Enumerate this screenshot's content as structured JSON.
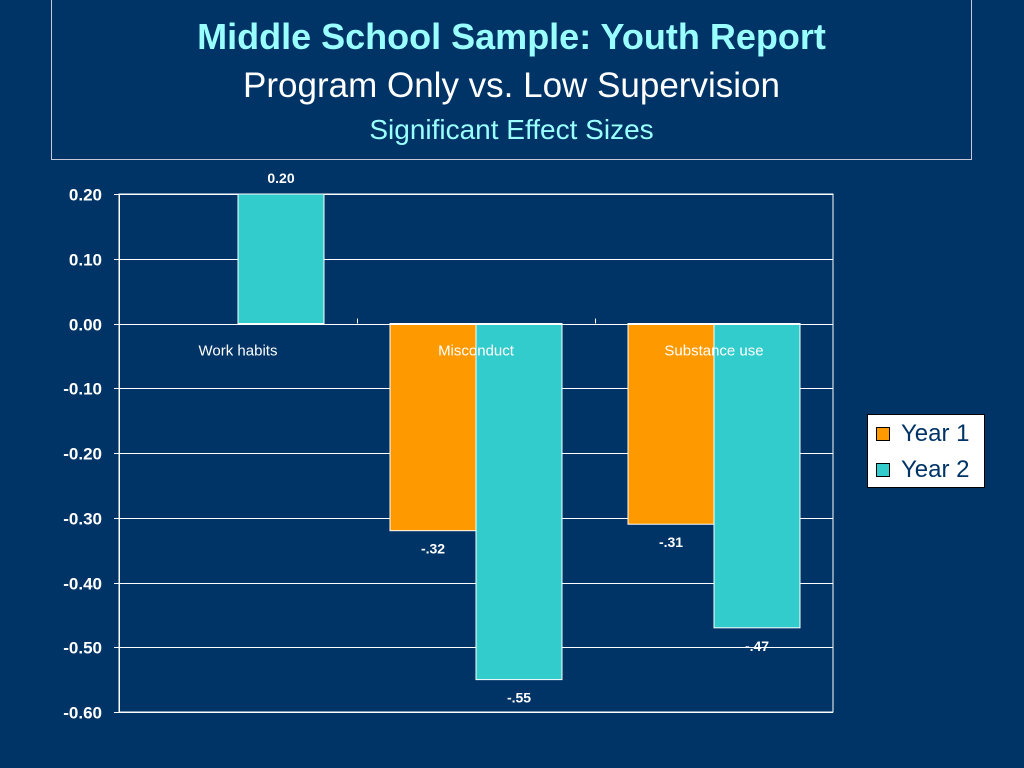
{
  "title": {
    "line1": "Middle School Sample: Youth Report",
    "line2": "Program Only vs. Low Supervision",
    "line3": "Significant Effect Sizes"
  },
  "colors": {
    "background": "#003366",
    "year1": "#ff9900",
    "year2": "#33cccc",
    "title_accent": "#99ffff",
    "grid": "#ffffff"
  },
  "chart_data": {
    "type": "bar",
    "categories": [
      "Work habits",
      "Misconduct",
      "Substance use"
    ],
    "series": [
      {
        "name": "Year 1",
        "values": [
          null,
          -0.32,
          -0.31
        ],
        "labels": [
          "",
          "-.32",
          "-.31"
        ]
      },
      {
        "name": "Year 2",
        "values": [
          0.2,
          -0.55,
          -0.47
        ],
        "labels": [
          "0.20",
          "-.55",
          "-.47"
        ]
      }
    ],
    "ylim": [
      -0.6,
      0.2
    ],
    "yticks": [
      "0.20",
      "0.10",
      "0.00",
      "-0.10",
      "-0.20",
      "-0.30",
      "-0.40",
      "-0.50",
      "-0.60"
    ],
    "ytick_values": [
      0.2,
      0.1,
      0.0,
      -0.1,
      -0.2,
      -0.3,
      -0.4,
      -0.5,
      -0.6
    ],
    "grid": true,
    "legend_position": "right"
  }
}
